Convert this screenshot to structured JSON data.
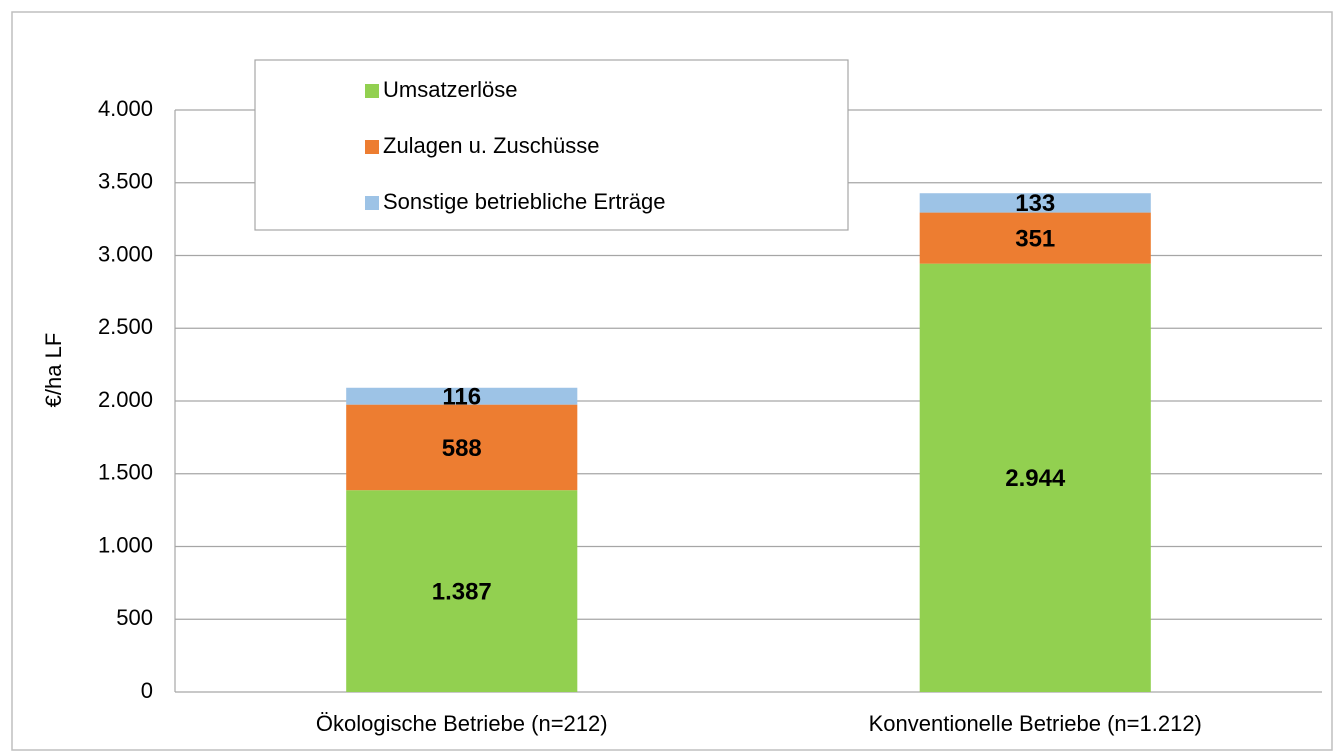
{
  "chart_data": {
    "type": "bar",
    "stacked": true,
    "y_label": "€/ha LF",
    "categories": [
      "Ökologische Betriebe (n=212)",
      "Konventionelle Betriebe (n=1.212)"
    ],
    "series": [
      {
        "name": "Umsatzerlöse",
        "color": "#92d050",
        "values": [
          1387,
          2944
        ],
        "value_labels": [
          "1.387",
          "2.944"
        ]
      },
      {
        "name": "Zulagen u. Zuschüsse",
        "color": "#ed7d31",
        "values": [
          588,
          351
        ],
        "value_labels": [
          "588",
          "351"
        ]
      },
      {
        "name": "Sonstige betriebliche Erträge",
        "color": "#9dc3e6",
        "values": [
          116,
          133
        ],
        "value_labels": [
          "116",
          "133"
        ]
      }
    ],
    "ylim": [
      0,
      4000
    ],
    "yticks": [
      0,
      500,
      {
        "value": 1000,
        "label": "1.000"
      },
      {
        "value": 1500,
        "label": "1.500"
      },
      {
        "value": 2000,
        "label": "2.000"
      },
      {
        "value": 2500,
        "label": "2.500"
      },
      {
        "value": 3000,
        "label": "3.000"
      },
      {
        "value": 3500,
        "label": "3.500"
      },
      {
        "value": 4000,
        "label": "4.000"
      }
    ],
    "grid": true,
    "legend": "top-left"
  }
}
